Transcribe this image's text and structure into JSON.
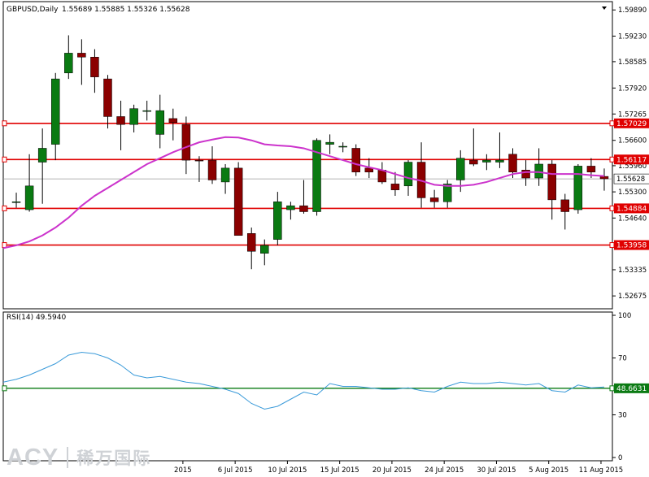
{
  "chart_data": [
    {
      "type": "candlestick",
      "title": "GBPUSD,Daily",
      "ohlc_header": "1.55689 1.55885 1.55326 1.55628",
      "ylim": [
        1.5235,
        1.601
      ],
      "y_ticks": [
        "1.59890",
        "1.59230",
        "1.58585",
        "1.57920",
        "1.57265",
        "1.56600",
        "1.55960",
        "1.55300",
        "1.54640",
        "1.53335",
        "1.52675"
      ],
      "x_ticks": [
        "2015",
        "6 Jul 2015",
        "10 Jul 2015",
        "15 Jul 2015",
        "20 Jul 2015",
        "24 Jul 2015",
        "30 Jul 2015",
        "5 Aug 2015",
        "11 Aug 2015"
      ],
      "current_price": "1.55628",
      "levels": [
        "1.57029",
        "1.56117",
        "1.54884",
        "1.53958"
      ],
      "colors": {
        "bull": "#0a7a12",
        "bear": "#8b0000",
        "level": "#e00000",
        "ma": "#cc33cc",
        "current": "#9a9a9a"
      },
      "candles": [
        {
          "o": 1.5505,
          "h": 1.5528,
          "l": 1.549,
          "c": 1.5505
        },
        {
          "o": 1.5485,
          "h": 1.5625,
          "l": 1.548,
          "c": 1.5545
        },
        {
          "o": 1.5605,
          "h": 1.569,
          "l": 1.55,
          "c": 1.564
        },
        {
          "o": 1.565,
          "h": 1.583,
          "l": 1.561,
          "c": 1.5815
        },
        {
          "o": 1.583,
          "h": 1.5925,
          "l": 1.5815,
          "c": 1.588
        },
        {
          "o": 1.588,
          "h": 1.5915,
          "l": 1.58,
          "c": 1.587
        },
        {
          "o": 1.587,
          "h": 1.589,
          "l": 1.578,
          "c": 1.582
        },
        {
          "o": 1.5815,
          "h": 1.5825,
          "l": 1.569,
          "c": 1.572
        },
        {
          "o": 1.572,
          "h": 1.576,
          "l": 1.5635,
          "c": 1.57
        },
        {
          "o": 1.57,
          "h": 1.575,
          "l": 1.568,
          "c": 1.574
        },
        {
          "o": 1.5735,
          "h": 1.576,
          "l": 1.571,
          "c": 1.5735
        },
        {
          "o": 1.5675,
          "h": 1.5775,
          "l": 1.564,
          "c": 1.5735
        },
        {
          "o": 1.5715,
          "h": 1.574,
          "l": 1.566,
          "c": 1.5705
        },
        {
          "o": 1.57,
          "h": 1.572,
          "l": 1.5575,
          "c": 1.561
        },
        {
          "o": 1.561,
          "h": 1.562,
          "l": 1.5555,
          "c": 1.5608
        },
        {
          "o": 1.561,
          "h": 1.5645,
          "l": 1.555,
          "c": 1.556
        },
        {
          "o": 1.5555,
          "h": 1.56,
          "l": 1.5525,
          "c": 1.559
        },
        {
          "o": 1.559,
          "h": 1.5605,
          "l": 1.542,
          "c": 1.542
        },
        {
          "o": 1.5425,
          "h": 1.544,
          "l": 1.5335,
          "c": 1.538
        },
        {
          "o": 1.5375,
          "h": 1.541,
          "l": 1.5345,
          "c": 1.5395
        },
        {
          "o": 1.541,
          "h": 1.553,
          "l": 1.5395,
          "c": 1.5505
        },
        {
          "o": 1.5485,
          "h": 1.5505,
          "l": 1.546,
          "c": 1.5495
        },
        {
          "o": 1.5495,
          "h": 1.556,
          "l": 1.5475,
          "c": 1.548
        },
        {
          "o": 1.548,
          "h": 1.5665,
          "l": 1.547,
          "c": 1.566
        },
        {
          "o": 1.565,
          "h": 1.5675,
          "l": 1.5625,
          "c": 1.5655
        },
        {
          "o": 1.5645,
          "h": 1.5655,
          "l": 1.563,
          "c": 1.5645
        },
        {
          "o": 1.564,
          "h": 1.565,
          "l": 1.557,
          "c": 1.558
        },
        {
          "o": 1.559,
          "h": 1.5615,
          "l": 1.5565,
          "c": 1.558
        },
        {
          "o": 1.5585,
          "h": 1.5605,
          "l": 1.555,
          "c": 1.5555
        },
        {
          "o": 1.555,
          "h": 1.558,
          "l": 1.552,
          "c": 1.5535
        },
        {
          "o": 1.5545,
          "h": 1.561,
          "l": 1.552,
          "c": 1.5605
        },
        {
          "o": 1.5605,
          "h": 1.5655,
          "l": 1.549,
          "c": 1.5515
        },
        {
          "o": 1.5515,
          "h": 1.5535,
          "l": 1.549,
          "c": 1.5505
        },
        {
          "o": 1.5505,
          "h": 1.556,
          "l": 1.549,
          "c": 1.555
        },
        {
          "o": 1.556,
          "h": 1.5635,
          "l": 1.553,
          "c": 1.5615
        },
        {
          "o": 1.561,
          "h": 1.569,
          "l": 1.5595,
          "c": 1.56
        },
        {
          "o": 1.5605,
          "h": 1.5625,
          "l": 1.5585,
          "c": 1.561
        },
        {
          "o": 1.5605,
          "h": 1.568,
          "l": 1.559,
          "c": 1.561
        },
        {
          "o": 1.5625,
          "h": 1.564,
          "l": 1.5565,
          "c": 1.558
        },
        {
          "o": 1.5585,
          "h": 1.561,
          "l": 1.5545,
          "c": 1.5565
        },
        {
          "o": 1.5565,
          "h": 1.564,
          "l": 1.5545,
          "c": 1.56
        },
        {
          "o": 1.56,
          "h": 1.561,
          "l": 1.546,
          "c": 1.551
        },
        {
          "o": 1.551,
          "h": 1.5525,
          "l": 1.5435,
          "c": 1.548
        },
        {
          "o": 1.5485,
          "h": 1.56,
          "l": 1.5475,
          "c": 1.5595
        },
        {
          "o": 1.5595,
          "h": 1.5615,
          "l": 1.5565,
          "c": 1.558
        },
        {
          "o": 1.5569,
          "h": 1.5589,
          "l": 1.5533,
          "c": 1.5563
        }
      ],
      "ma": [
        1.5395,
        1.5405,
        1.542,
        1.544,
        1.5465,
        1.5495,
        1.552,
        1.554,
        1.556,
        1.558,
        1.56,
        1.5615,
        1.563,
        1.5643,
        1.5655,
        1.5662,
        1.5668,
        1.5667,
        1.566,
        1.565,
        1.5647,
        1.5645,
        1.564,
        1.563,
        1.562,
        1.561,
        1.56,
        1.5592,
        1.5585,
        1.5575,
        1.5565,
        1.5558,
        1.5548,
        1.5545,
        1.5545,
        1.5548,
        1.5555,
        1.5565,
        1.5575,
        1.558,
        1.558,
        1.5575,
        1.5575,
        1.5575,
        1.5572,
        1.557
      ]
    },
    {
      "type": "line",
      "title": "RSI(14) 49.5940",
      "ylim": [
        0,
        100
      ],
      "y_ticks": [
        "100",
        "70",
        "30",
        "0"
      ],
      "level": "48.6631",
      "colors": {
        "line": "#3a9ad9",
        "level": "#0a7a12"
      },
      "values": [
        55,
        58,
        62,
        66,
        72,
        74,
        73,
        70,
        65,
        58,
        56,
        57,
        55,
        53,
        52,
        50,
        48,
        45,
        38,
        34,
        36,
        41,
        46,
        44,
        52,
        50,
        50,
        49,
        48,
        48,
        49,
        47,
        46,
        50,
        53,
        52,
        52,
        53,
        52,
        51,
        52,
        47,
        46,
        51,
        49,
        49.6
      ]
    }
  ],
  "logo": {
    "brand": "ACY",
    "cn": "稀万国际"
  }
}
